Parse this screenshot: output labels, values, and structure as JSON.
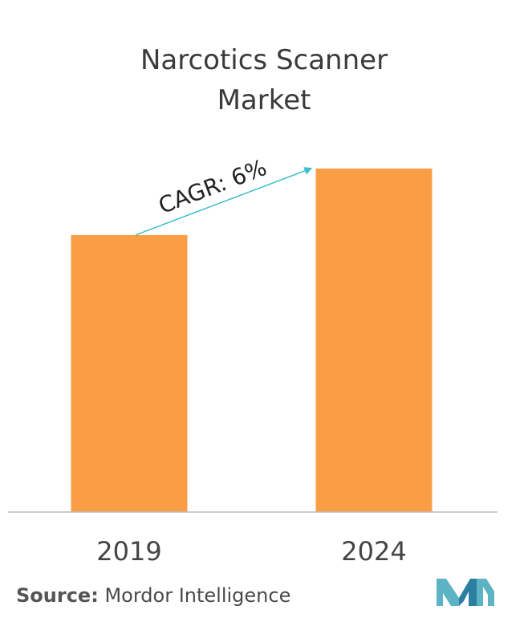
{
  "title_lines": [
    "Narcotics Scanner",
    "Market"
  ],
  "chart_data": {
    "type": "bar",
    "title": "Narcotics Scanner Market",
    "categories": [
      "2019",
      "2024"
    ],
    "values": [
      1.0,
      1.24
    ],
    "ylim": [
      0,
      1.24
    ],
    "grid": false,
    "annotation": "CAGR: 6%",
    "colors": {
      "bar": "#FA9E46",
      "arrow": "#3DBFCB",
      "axis": "#BBBBBB"
    }
  },
  "source": {
    "label": "Source:",
    "value": "Mordor Intelligence"
  },
  "logo": {
    "icon": "mordor-intelligence-logo",
    "colors": [
      "#5BB3C4",
      "#2C7FA0"
    ]
  }
}
